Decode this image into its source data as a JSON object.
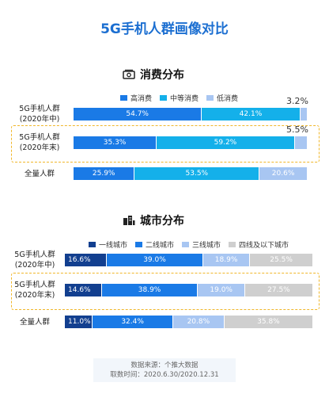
{
  "title": "5G手机人群画像对比",
  "colors": {
    "brand": "#1c6fd1",
    "highlight": "#f0b72b"
  },
  "chart_data": [
    {
      "type": "bar",
      "stacked": true,
      "orientation": "horizontal",
      "title": "消费分布",
      "icon": "money-icon",
      "legend_position": "top",
      "categories": [
        "5G手机人群(2020年中)",
        "5G手机人群(2020年末)",
        "全量人群"
      ],
      "category_lines": [
        [
          "5G手机人群",
          "(2020年中)"
        ],
        [
          "5G手机人群",
          "(2020年末)"
        ],
        [
          "全量人群"
        ]
      ],
      "series": [
        {
          "name": "高消费",
          "color": "#1a7ae6",
          "values": [
            54.7,
            35.3,
            25.9
          ],
          "labels": [
            "54.7%",
            "35.3%",
            "25.9%"
          ]
        },
        {
          "name": "中等消费",
          "color": "#14b0ea",
          "values": [
            42.1,
            59.2,
            53.5
          ],
          "labels": [
            "42.1%",
            "59.2%",
            "53.5%"
          ]
        },
        {
          "name": "低消费",
          "color": "#a8c6f2",
          "values": [
            3.2,
            5.5,
            20.6
          ],
          "labels": [
            "3.2%",
            "5.5%",
            "20.6%"
          ]
        }
      ],
      "highlighted_category": "5G手机人群(2020年末)"
    },
    {
      "type": "bar",
      "stacked": true,
      "orientation": "horizontal",
      "title": "城市分布",
      "icon": "city-icon",
      "legend_position": "top",
      "categories": [
        "5G手机人群(2020年中)",
        "5G手机人群(2020年末)",
        "全量人群"
      ],
      "category_lines": [
        [
          "5G手机人群",
          "(2020年中)"
        ],
        [
          "5G手机人群",
          "(2020年末)"
        ],
        [
          "全量人群"
        ]
      ],
      "series": [
        {
          "name": "一线城市",
          "color": "#123f8f",
          "values": [
            16.6,
            14.6,
            11.0
          ],
          "labels": [
            "16.6%",
            "14.6%",
            "11.0%"
          ]
        },
        {
          "name": "二线城市",
          "color": "#1a7ae6",
          "values": [
            39.0,
            38.9,
            32.4
          ],
          "labels": [
            "39.0%",
            "38.9%",
            "32.4%"
          ]
        },
        {
          "name": "三线城市",
          "color": "#a8c6f2",
          "values": [
            18.9,
            19.0,
            20.8
          ],
          "labels": [
            "18.9%",
            "19.0%",
            "20.8%"
          ]
        },
        {
          "name": "四线及以下城市",
          "color": "#cfcfcf",
          "values": [
            25.5,
            27.5,
            35.8
          ],
          "labels": [
            "25.5%",
            "27.5%",
            "35.8%"
          ]
        }
      ],
      "highlighted_category": "5G手机人群(2020年末)"
    }
  ],
  "footer": {
    "source": "数据来源：个推大数据",
    "period": "取数时间：2020.6.30/2020.12.31"
  }
}
